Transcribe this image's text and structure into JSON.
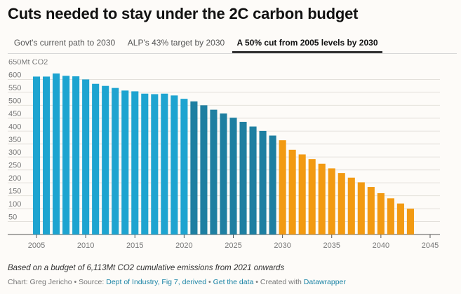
{
  "title": "Cuts needed to stay under the 2C carbon budget",
  "tabs": [
    {
      "label": "Govt's current path to 2030",
      "active": false
    },
    {
      "label": "ALP's 43% target by 2030",
      "active": false
    },
    {
      "label": "A 50% cut from 2005 levels by 2030",
      "active": true
    }
  ],
  "chart_data": {
    "type": "bar",
    "y_unit_label": "650Mt CO2",
    "x": [
      2005,
      2006,
      2007,
      2008,
      2009,
      2010,
      2011,
      2012,
      2013,
      2014,
      2015,
      2016,
      2017,
      2018,
      2019,
      2020,
      2021,
      2022,
      2023,
      2024,
      2025,
      2026,
      2027,
      2028,
      2029,
      2030,
      2031,
      2032,
      2033,
      2034,
      2035,
      2036,
      2037,
      2038,
      2039,
      2040,
      2041,
      2042,
      2043
    ],
    "values": [
      611,
      611,
      623,
      614,
      612,
      600,
      583,
      575,
      567,
      557,
      554,
      545,
      543,
      545,
      538,
      525,
      515,
      500,
      483,
      468,
      452,
      436,
      418,
      401,
      383,
      365,
      328,
      310,
      292,
      274,
      256,
      238,
      220,
      202,
      184,
      160,
      140,
      120,
      100
    ],
    "segments": [
      {
        "from": 2005,
        "to": 2020,
        "color": "#1ea4d0"
      },
      {
        "from": 2020,
        "to": 2029,
        "color": "#1e7fa1"
      },
      {
        "from": 2030,
        "to": 2043,
        "color": "#f29a12"
      }
    ],
    "ylim": [
      0,
      650
    ],
    "yticks": [
      50,
      100,
      150,
      200,
      250,
      300,
      350,
      400,
      450,
      500,
      550,
      600
    ],
    "xlim": [
      2004,
      2046
    ],
    "xticks": [
      2005,
      2010,
      2015,
      2020,
      2025,
      2030,
      2035,
      2040,
      2045
    ],
    "grid": true
  },
  "note": "Based on a budget of 6,113Mt CO2 cumulative emissions from 2021 onwards",
  "credit": {
    "prefix": "Chart: Greg Jericho • Source:",
    "source_link": "Dept of Industry, Fig 7, derived",
    "sep1": "•",
    "data_link": "Get the data",
    "sep2": "• Created with",
    "tool_link": "Datawrapper"
  }
}
